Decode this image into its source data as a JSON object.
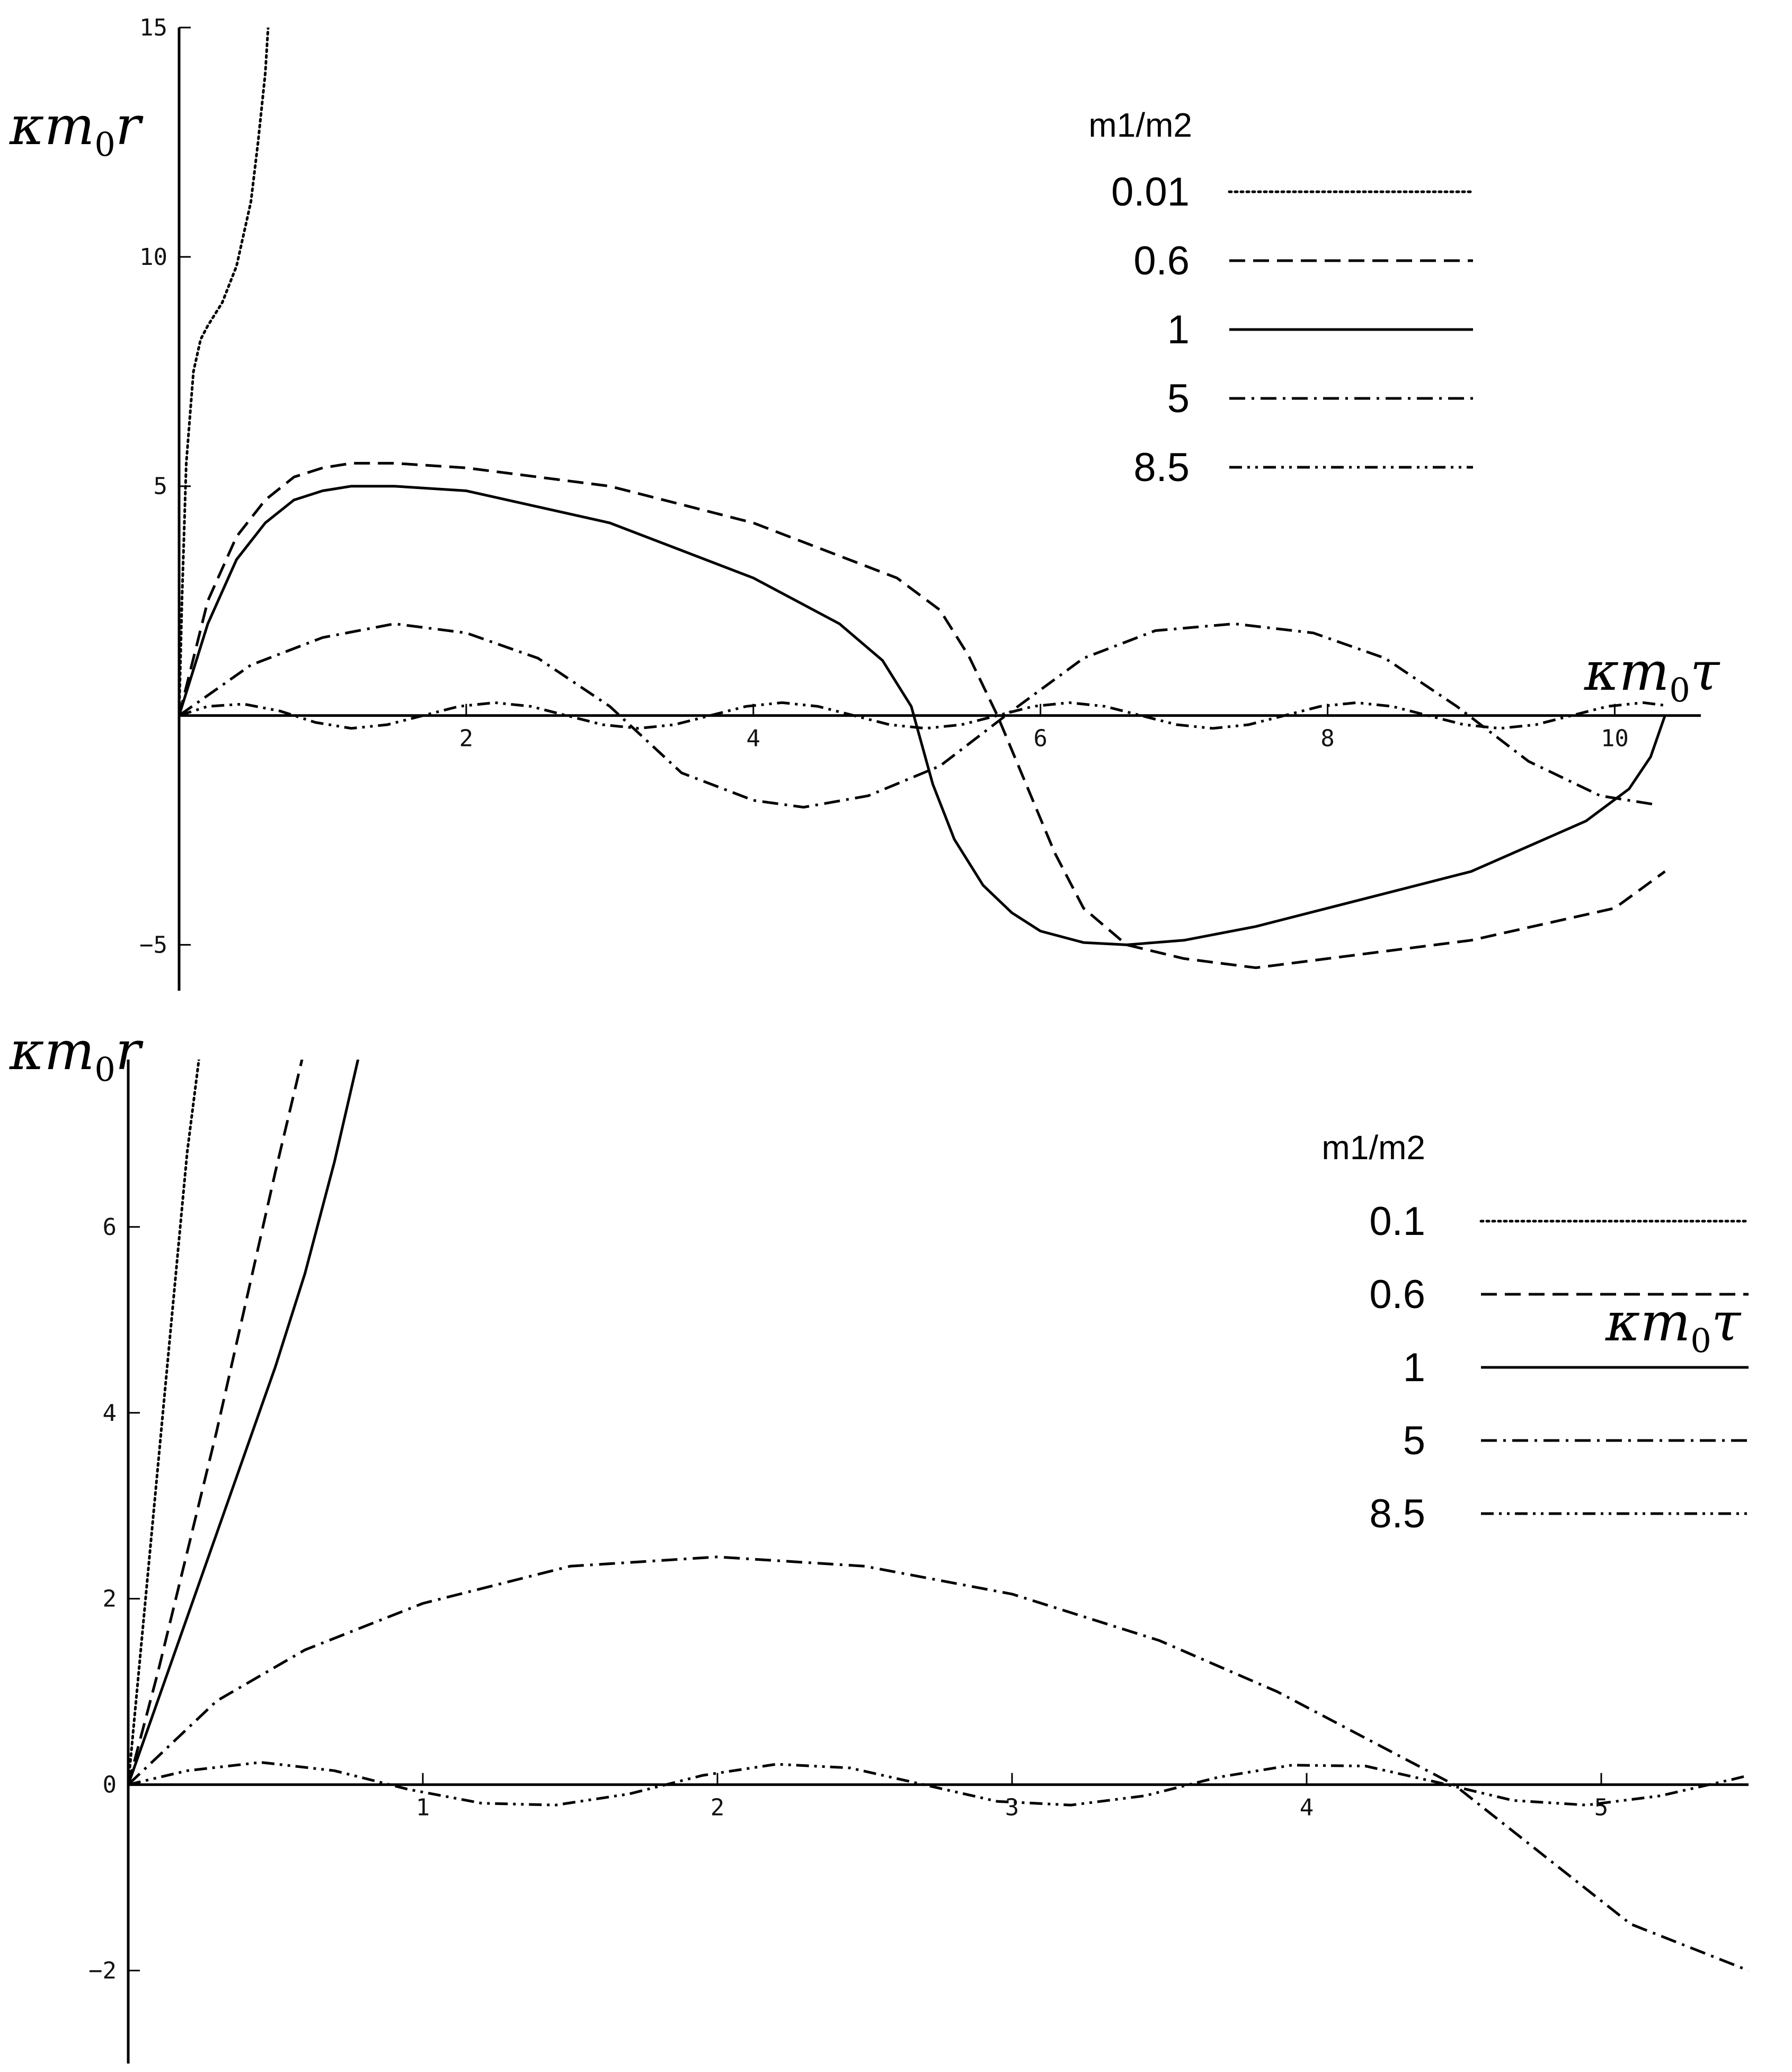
{
  "chart_data": [
    {
      "type": "line",
      "xlabel_parts": [
        "κm",
        "0",
        "τ"
      ],
      "ylabel_parts": [
        "κm",
        "0",
        "r"
      ],
      "xlim": [
        0,
        10.6
      ],
      "ylim": [
        -6,
        15
      ],
      "x_ticks": [
        2,
        4,
        6,
        8,
        10
      ],
      "y_ticks": [
        -5,
        5,
        10,
        15
      ],
      "legend_title": "m1/m2",
      "legend_position": "top-right",
      "series": [
        {
          "name": "0.01",
          "style": "dotted",
          "x": [
            0,
            0.02,
            0.05,
            0.1,
            0.15,
            0.2,
            0.3,
            0.4,
            0.5,
            0.55,
            0.6,
            0.62
          ],
          "y": [
            0,
            2.5,
            5.5,
            7.5,
            8.2,
            8.5,
            9.0,
            9.8,
            11.2,
            12.5,
            14.0,
            15.0
          ]
        },
        {
          "name": "0.6",
          "style": "dashed",
          "x": [
            0,
            0.2,
            0.4,
            0.6,
            0.8,
            1.0,
            1.2,
            1.5,
            2.0,
            3.0,
            4.0,
            5.0,
            5.3,
            5.5,
            5.7,
            5.9,
            6.1,
            6.3,
            6.6,
            7.0,
            7.5,
            8.0,
            9.0,
            10.0,
            10.35
          ],
          "y": [
            0,
            2.5,
            3.9,
            4.7,
            5.2,
            5.4,
            5.5,
            5.5,
            5.4,
            5.0,
            4.2,
            3.0,
            2.3,
            1.3,
            0.0,
            -1.5,
            -3.0,
            -4.2,
            -5.0,
            -5.3,
            -5.5,
            -5.3,
            -4.9,
            -4.2,
            -3.4
          ]
        },
        {
          "name": "1",
          "style": "solid",
          "x": [
            0,
            0.2,
            0.4,
            0.6,
            0.8,
            1.0,
            1.2,
            1.5,
            2.0,
            3.0,
            4.0,
            4.6,
            4.9,
            5.1,
            5.25,
            5.4,
            5.6,
            5.8,
            6.0,
            6.3,
            6.6,
            7.0,
            7.5,
            8.0,
            9.0,
            9.8,
            10.1,
            10.25,
            10.35
          ],
          "y": [
            0,
            2.0,
            3.4,
            4.2,
            4.7,
            4.9,
            5.0,
            5.0,
            4.9,
            4.2,
            3.0,
            2.0,
            1.2,
            0.2,
            -1.5,
            -2.7,
            -3.7,
            -4.3,
            -4.7,
            -4.95,
            -5.0,
            -4.9,
            -4.6,
            -4.2,
            -3.4,
            -2.3,
            -1.6,
            -0.9,
            0.0
          ]
        },
        {
          "name": "5",
          "style": "dash-dot",
          "x": [
            0,
            0.5,
            1.0,
            1.5,
            2.0,
            2.5,
            3.0,
            3.5,
            4.0,
            4.35,
            4.8,
            5.3,
            5.8,
            6.3,
            6.8,
            7.35,
            7.9,
            8.4,
            8.9,
            9.4,
            9.9,
            10.3
          ],
          "y": [
            0,
            1.1,
            1.7,
            2.0,
            1.8,
            1.25,
            0.2,
            -1.25,
            -1.85,
            -2.0,
            -1.75,
            -1.1,
            0.1,
            1.25,
            1.85,
            2.0,
            1.8,
            1.25,
            0.2,
            -1.0,
            -1.75,
            -1.95
          ]
        },
        {
          "name": "8.5",
          "style": "dash-dot-dot",
          "x": [
            0,
            0.2,
            0.45,
            0.7,
            0.95,
            1.2,
            1.45,
            1.7,
            1.95,
            2.2,
            2.45,
            2.7,
            2.95,
            3.2,
            3.45,
            3.7,
            3.95,
            4.2,
            4.45,
            4.7,
            4.95,
            5.2,
            5.45,
            5.7,
            5.95,
            6.2,
            6.45,
            6.7,
            6.95,
            7.2,
            7.45,
            7.7,
            7.95,
            8.2,
            8.45,
            8.7,
            8.95,
            9.2,
            9.45,
            9.7,
            9.95,
            10.2,
            10.35
          ],
          "y": [
            0,
            0.2,
            0.25,
            0.1,
            -0.15,
            -0.28,
            -0.2,
            0.0,
            0.2,
            0.28,
            0.2,
            0.0,
            -0.2,
            -0.28,
            -0.2,
            0.0,
            0.2,
            0.28,
            0.2,
            0.0,
            -0.2,
            -0.28,
            -0.2,
            0.0,
            0.2,
            0.28,
            0.2,
            0.0,
            -0.2,
            -0.28,
            -0.2,
            0.0,
            0.2,
            0.28,
            0.2,
            0.0,
            -0.2,
            -0.28,
            -0.2,
            0.0,
            0.2,
            0.28,
            0.22
          ]
        }
      ]
    },
    {
      "type": "line",
      "xlabel_parts": [
        "κm",
        "0",
        "τ"
      ],
      "ylabel_parts": [
        "κm",
        "0",
        "r"
      ],
      "xlim": [
        0,
        5.5
      ],
      "ylim": [
        -3,
        7.8
      ],
      "x_ticks": [
        1,
        2,
        3,
        4,
        5
      ],
      "y_ticks": [
        -2,
        0,
        2,
        4,
        6
      ],
      "legend_title": "m1/m2",
      "legend_position": "top-right",
      "series": [
        {
          "name": "0.1",
          "style": "dotted",
          "x": [
            0,
            0.05,
            0.1,
            0.15,
            0.2,
            0.24
          ],
          "y": [
            0,
            1.7,
            3.4,
            5.1,
            6.8,
            7.8
          ]
        },
        {
          "name": "0.6",
          "style": "dashed",
          "x": [
            0,
            0.1,
            0.2,
            0.3,
            0.4,
            0.5,
            0.59
          ],
          "y": [
            0,
            1.2,
            2.5,
            3.8,
            5.2,
            6.6,
            7.8
          ]
        },
        {
          "name": "1",
          "style": "solid",
          "x": [
            0,
            0.1,
            0.2,
            0.3,
            0.4,
            0.5,
            0.6,
            0.7,
            0.78
          ],
          "y": [
            0,
            0.9,
            1.8,
            2.7,
            3.6,
            4.5,
            5.5,
            6.7,
            7.8
          ]
        },
        {
          "name": "5",
          "style": "dash-dot",
          "x": [
            0,
            0.3,
            0.6,
            1.0,
            1.5,
            2.0,
            2.5,
            3.0,
            3.5,
            3.9,
            4.2,
            4.5,
            4.8,
            5.1,
            5.5
          ],
          "y": [
            0,
            0.9,
            1.45,
            1.95,
            2.35,
            2.45,
            2.35,
            2.05,
            1.55,
            1.0,
            0.5,
            0.0,
            -0.75,
            -1.5,
            -2.0
          ]
        },
        {
          "name": "8.5",
          "style": "dash-dot-dot",
          "x": [
            0,
            0.2,
            0.45,
            0.7,
            0.95,
            1.2,
            1.45,
            1.7,
            1.95,
            2.2,
            2.45,
            2.7,
            2.95,
            3.2,
            3.45,
            3.7,
            3.95,
            4.2,
            4.45,
            4.7,
            4.95,
            5.2,
            5.45,
            5.5
          ],
          "y": [
            0,
            0.15,
            0.24,
            0.15,
            -0.05,
            -0.2,
            -0.22,
            -0.1,
            0.1,
            0.22,
            0.18,
            0.0,
            -0.18,
            -0.22,
            -0.12,
            0.08,
            0.21,
            0.2,
            0.02,
            -0.17,
            -0.22,
            -0.12,
            0.06,
            0.1
          ]
        }
      ]
    }
  ]
}
